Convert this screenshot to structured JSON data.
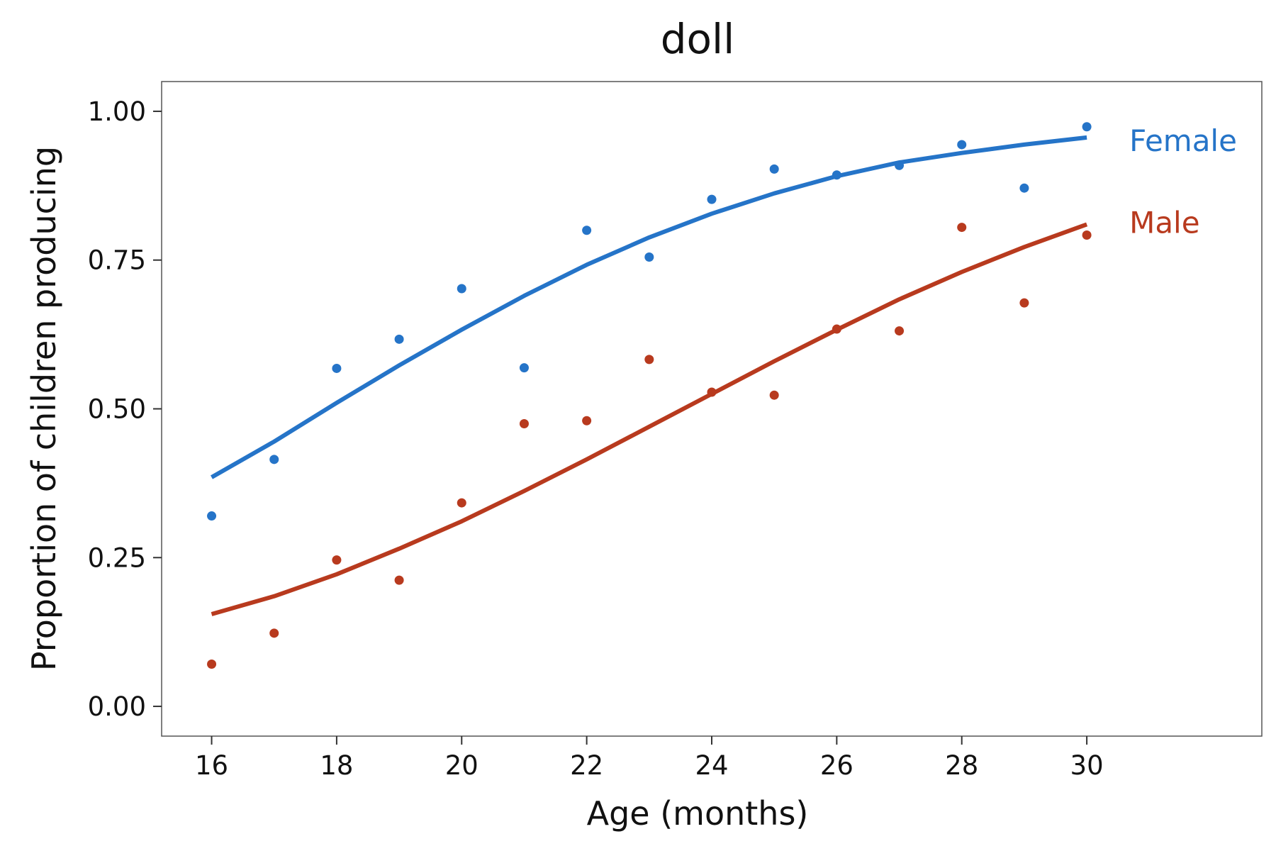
{
  "chart_data": {
    "type": "scatter",
    "title": "doll",
    "xlabel": "Age (months)",
    "ylabel": "Proportion of children producing",
    "xlim": [
      15.2,
      32.8
    ],
    "ylim": [
      -0.05,
      1.05
    ],
    "xticks": [
      16,
      18,
      20,
      22,
      24,
      26,
      28,
      30
    ],
    "xtick_labels": [
      "16",
      "18",
      "20",
      "22",
      "24",
      "26",
      "28",
      "30"
    ],
    "yticks": [
      0,
      0.25,
      0.5,
      0.75,
      1.0
    ],
    "ytick_labels": [
      "0.00",
      "0.25",
      "0.50",
      "0.75",
      "1.00"
    ],
    "grid": false,
    "legend": "direct labels at right end of lines",
    "series": [
      {
        "name": "Female",
        "color": "#2574c8",
        "x": [
          16,
          17,
          18,
          19,
          20,
          21,
          22,
          23,
          24,
          25,
          26,
          27,
          28,
          29,
          30
        ],
        "y": [
          0.32,
          0.415,
          0.568,
          0.617,
          0.702,
          0.569,
          0.8,
          0.755,
          0.852,
          0.903,
          0.893,
          0.909,
          0.944,
          0.871,
          0.974
        ],
        "fit": [
          {
            "x": 16,
            "y": 0.385
          },
          {
            "x": 17,
            "y": 0.445
          },
          {
            "x": 18,
            "y": 0.51
          },
          {
            "x": 19,
            "y": 0.573
          },
          {
            "x": 20,
            "y": 0.633
          },
          {
            "x": 21,
            "y": 0.69
          },
          {
            "x": 22,
            "y": 0.742
          },
          {
            "x": 23,
            "y": 0.788
          },
          {
            "x": 24,
            "y": 0.828
          },
          {
            "x": 25,
            "y": 0.862
          },
          {
            "x": 26,
            "y": 0.891
          },
          {
            "x": 27,
            "y": 0.914
          },
          {
            "x": 28,
            "y": 0.93
          },
          {
            "x": 29,
            "y": 0.944
          },
          {
            "x": 30,
            "y": 0.956
          }
        ]
      },
      {
        "name": "Male",
        "color": "#b83a1e",
        "x": [
          16,
          17,
          18,
          19,
          20,
          21,
          22,
          23,
          24,
          25,
          26,
          27,
          28,
          29,
          30
        ],
        "y": [
          0.071,
          0.123,
          0.246,
          0.212,
          0.342,
          0.475,
          0.48,
          0.583,
          0.528,
          0.523,
          0.634,
          0.631,
          0.805,
          0.678,
          0.792
        ],
        "fit": [
          {
            "x": 16,
            "y": 0.155
          },
          {
            "x": 17,
            "y": 0.185
          },
          {
            "x": 18,
            "y": 0.222
          },
          {
            "x": 19,
            "y": 0.265
          },
          {
            "x": 20,
            "y": 0.311
          },
          {
            "x": 21,
            "y": 0.362
          },
          {
            "x": 22,
            "y": 0.415
          },
          {
            "x": 23,
            "y": 0.47
          },
          {
            "x": 24,
            "y": 0.525
          },
          {
            "x": 25,
            "y": 0.58
          },
          {
            "x": 26,
            "y": 0.633
          },
          {
            "x": 27,
            "y": 0.684
          },
          {
            "x": 28,
            "y": 0.73
          },
          {
            "x": 29,
            "y": 0.772
          },
          {
            "x": 30,
            "y": 0.81
          }
        ]
      }
    ]
  }
}
